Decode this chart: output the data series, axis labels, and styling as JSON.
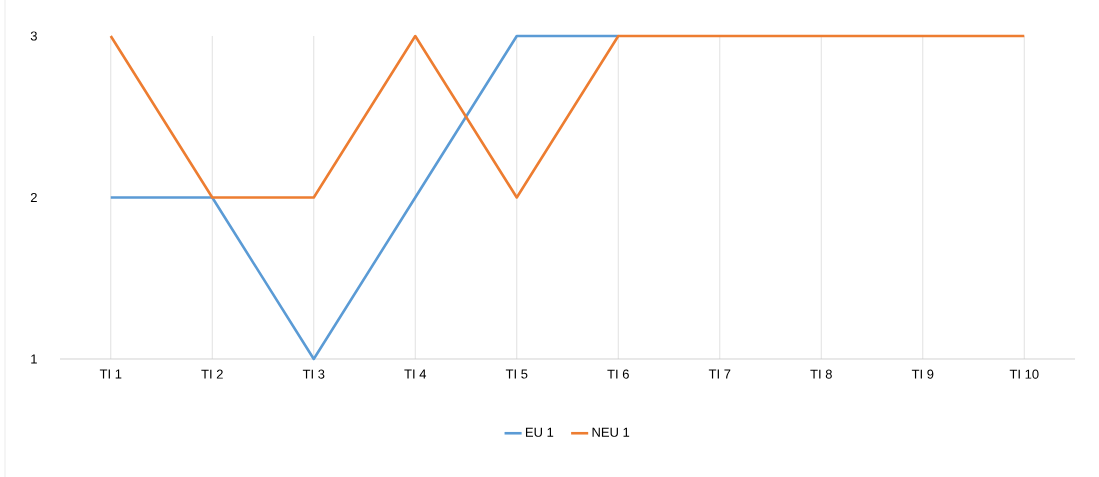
{
  "chart_data": {
    "type": "line",
    "categories": [
      "TI 1",
      "TI 2",
      "TI 3",
      "TI 4",
      "TI 5",
      "TI 6",
      "TI 7",
      "TI 8",
      "TI 9",
      "TI 10"
    ],
    "series": [
      {
        "name": "EU 1",
        "color": "#5b9bd5",
        "values": [
          2,
          2,
          1,
          2,
          3,
          3,
          null,
          null,
          null,
          null
        ]
      },
      {
        "name": "NEU 1",
        "color": "#ed7d31",
        "values": [
          3,
          2,
          2,
          3,
          2,
          3,
          3,
          3,
          3,
          3
        ]
      }
    ],
    "ylim": [
      1,
      3
    ],
    "yticks": [
      1,
      2,
      3
    ],
    "grid": "x",
    "legend": "bottom",
    "marker": "none",
    "line_style": "solid"
  }
}
